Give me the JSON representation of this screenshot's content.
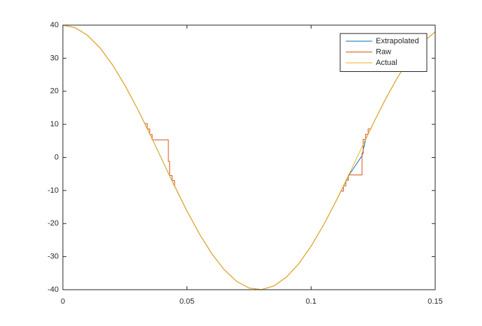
{
  "chart_data": {
    "type": "line",
    "xlim": [
      0,
      0.15
    ],
    "ylim": [
      -40,
      40
    ],
    "xticks": [
      0,
      0.05,
      0.1,
      0.15
    ],
    "yticks": [
      -40,
      -30,
      -20,
      -10,
      0,
      10,
      20,
      30,
      40
    ],
    "legend": "northeast",
    "series": [
      {
        "name": "Extrapolated",
        "color": "#0072bd",
        "x": [
          0,
          0.005,
          0.01,
          0.015,
          0.02,
          0.025,
          0.03,
          0.033,
          0.0362,
          0.0425,
          0.045,
          0.05,
          0.055,
          0.06,
          0.065,
          0.07,
          0.075,
          0.08,
          0.085,
          0.09,
          0.095,
          0.1,
          0.105,
          0.11,
          0.1153,
          0.1205,
          0.122,
          0.125,
          0.13,
          0.135,
          0.14,
          0.145,
          0.15
        ],
        "values": [
          40,
          39.21,
          36.88,
          33.09,
          27.99,
          21.81,
          14.76,
          10.24,
          5.23,
          -4.76,
          -8.68,
          -16.22,
          -23.12,
          -29.11,
          -33.96,
          -37.47,
          -39.49,
          -39.97,
          -38.87,
          -36.24,
          -32.18,
          -26.85,
          -20.46,
          -13.27,
          -5.3,
          0.5,
          5.5,
          10.22,
          17.66,
          24.4,
          30.18,
          34.77,
          37.99
        ]
      },
      {
        "name": "Raw",
        "color": "#d95319",
        "x": [
          0,
          0.005,
          0.01,
          0.015,
          0.02,
          0.025,
          0.03,
          0.033,
          0.034,
          0.034,
          0.035,
          0.035,
          0.036,
          0.036,
          0.0425,
          0.0425,
          0.043,
          0.043,
          0.044,
          0.044,
          0.045,
          0.045,
          0.05,
          0.055,
          0.06,
          0.065,
          0.07,
          0.075,
          0.08,
          0.085,
          0.09,
          0.095,
          0.1,
          0.105,
          0.11,
          0.112,
          0.113,
          0.113,
          0.114,
          0.114,
          0.115,
          0.115,
          0.1205,
          0.1205,
          0.121,
          0.121,
          0.122,
          0.122,
          0.123,
          0.123,
          0.124,
          0.125,
          0.13,
          0.135,
          0.14,
          0.145,
          0.15
        ],
        "values": [
          40,
          39.21,
          36.88,
          33.09,
          27.99,
          21.81,
          14.76,
          10.2,
          10.2,
          8.6,
          8.6,
          6.9,
          6.9,
          5.3,
          5.3,
          -1.2,
          -1.2,
          -5.5,
          -5.5,
          -7,
          -7,
          -8.6,
          -16.22,
          -23.12,
          -29.11,
          -33.96,
          -37.47,
          -39.49,
          -39.97,
          -38.87,
          -36.24,
          -32.18,
          -26.85,
          -20.46,
          -13.27,
          -10.2,
          -10.2,
          -8.6,
          -8.6,
          -6.9,
          -6.9,
          -5.3,
          -5.3,
          1.2,
          1.2,
          5.5,
          5.5,
          7,
          7,
          8.6,
          8.6,
          10.22,
          17.66,
          24.4,
          30.18,
          34.77,
          37.99
        ]
      },
      {
        "name": "Actual",
        "color": "#edb120",
        "x": [
          0,
          0.005,
          0.01,
          0.015,
          0.02,
          0.025,
          0.03,
          0.035,
          0.04,
          0.045,
          0.05,
          0.055,
          0.06,
          0.065,
          0.07,
          0.075,
          0.08,
          0.085,
          0.09,
          0.095,
          0.1,
          0.105,
          0.11,
          0.115,
          0.12,
          0.125,
          0.13,
          0.135,
          0.14,
          0.145,
          0.15
        ],
        "values": [
          40,
          39.21,
          36.88,
          33.09,
          27.99,
          21.81,
          14.76,
          7.12,
          -0.8,
          -8.68,
          -16.22,
          -23.12,
          -29.11,
          -33.96,
          -37.47,
          -39.49,
          -39.97,
          -38.87,
          -36.24,
          -32.18,
          -26.85,
          -20.46,
          -13.27,
          -5.55,
          2.38,
          10.22,
          17.66,
          24.4,
          30.18,
          34.77,
          37.99
        ]
      }
    ]
  }
}
